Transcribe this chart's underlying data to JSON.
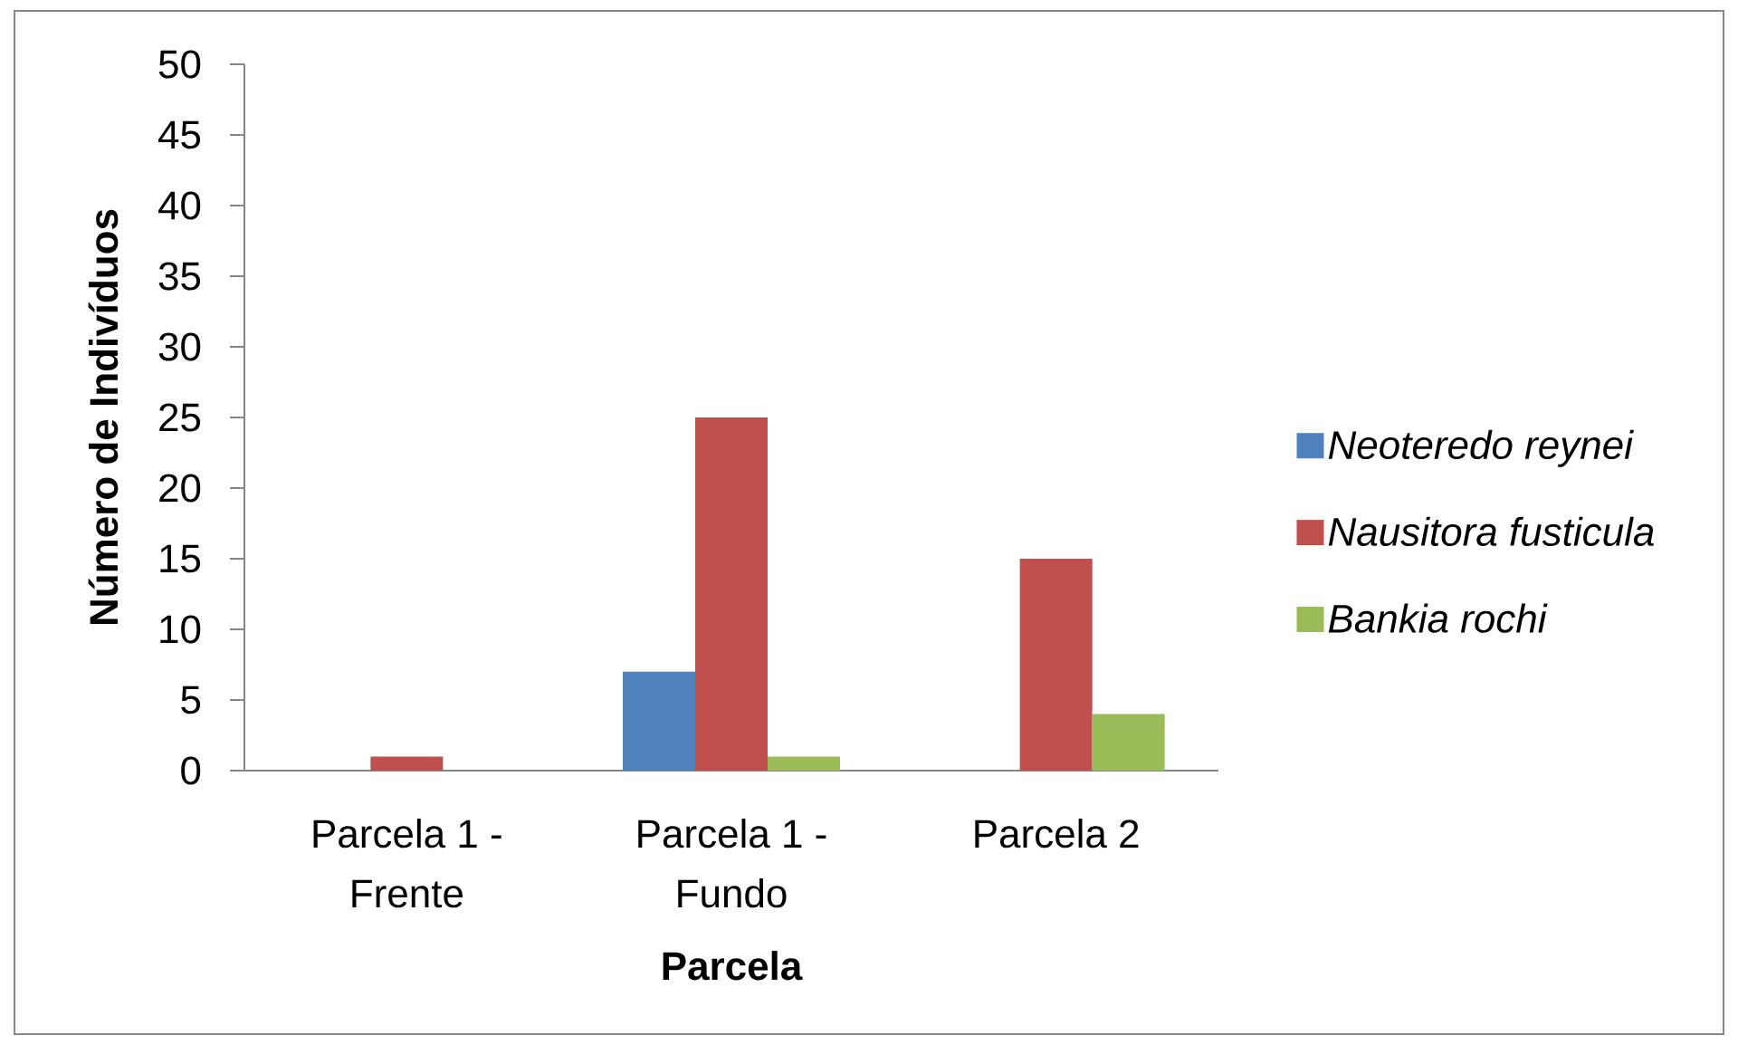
{
  "chart_data": {
    "type": "bar",
    "xlabel": "Parcela",
    "ylabel": "Número de Indivíduos",
    "categories": [
      "Parcela 1 - Frente",
      "Parcela 1 - Fundo",
      "Parcela 2"
    ],
    "series": [
      {
        "name": "Neoteredo reynei",
        "color": "#4f81bd",
        "values": [
          0,
          7,
          0
        ]
      },
      {
        "name": "Nausitora fusticula",
        "color": "#c0504d",
        "values": [
          1,
          25,
          15
        ]
      },
      {
        "name": "Bankia rochi",
        "color": "#9bbb59",
        "values": [
          0,
          1,
          4
        ]
      }
    ],
    "ylim": [
      0,
      50
    ],
    "yticks": [
      0,
      5,
      10,
      15,
      20,
      25,
      30,
      35,
      40,
      45,
      50
    ],
    "legend": "right"
  }
}
